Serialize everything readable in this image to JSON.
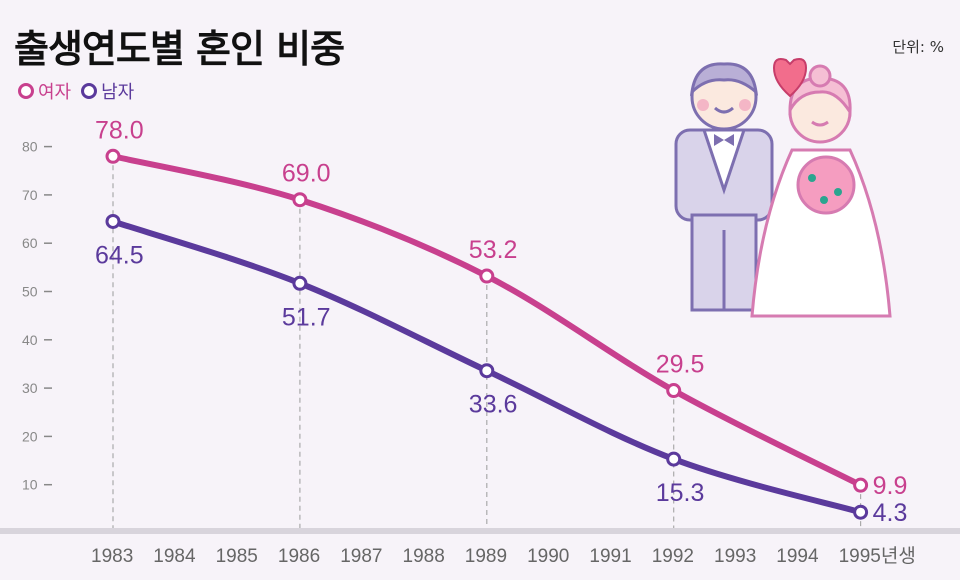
{
  "title": "출생연도별 혼인 비중",
  "unit": "단위: %",
  "chart_data": {
    "type": "line",
    "title": "출생연도별 혼인 비중",
    "x": [
      1983,
      1984,
      1985,
      1986,
      1987,
      1988,
      1989,
      1990,
      1991,
      1992,
      1993,
      1994,
      1995
    ],
    "x_tick_labels": [
      "1983",
      "1984",
      "1985",
      "1986",
      "1987",
      "1988",
      "1989",
      "1990",
      "1991",
      "1992",
      "1993",
      "1994",
      "1995년생"
    ],
    "y_ticks": [
      10,
      20,
      30,
      40,
      50,
      60,
      70,
      80
    ],
    "ylim": [
      0,
      85
    ],
    "grid": "dashed vertical lines at labeled years",
    "legend_placement": "top-left",
    "series": [
      {
        "name": "여자",
        "color": "#c8408e",
        "x": [
          1983,
          1986,
          1989,
          1992,
          1995
        ],
        "values": [
          78.0,
          69.0,
          53.2,
          29.5,
          9.9
        ],
        "labels": [
          "78.0",
          "69.0",
          "53.2",
          "29.5",
          "9.9"
        ]
      },
      {
        "name": "남자",
        "color": "#5b3a9c",
        "x": [
          1983,
          1986,
          1989,
          1992,
          1995
        ],
        "values": [
          64.5,
          51.7,
          33.6,
          15.3,
          4.3
        ],
        "labels": [
          "64.5",
          "51.7",
          "33.6",
          "15.3",
          "4.3"
        ]
      }
    ]
  }
}
